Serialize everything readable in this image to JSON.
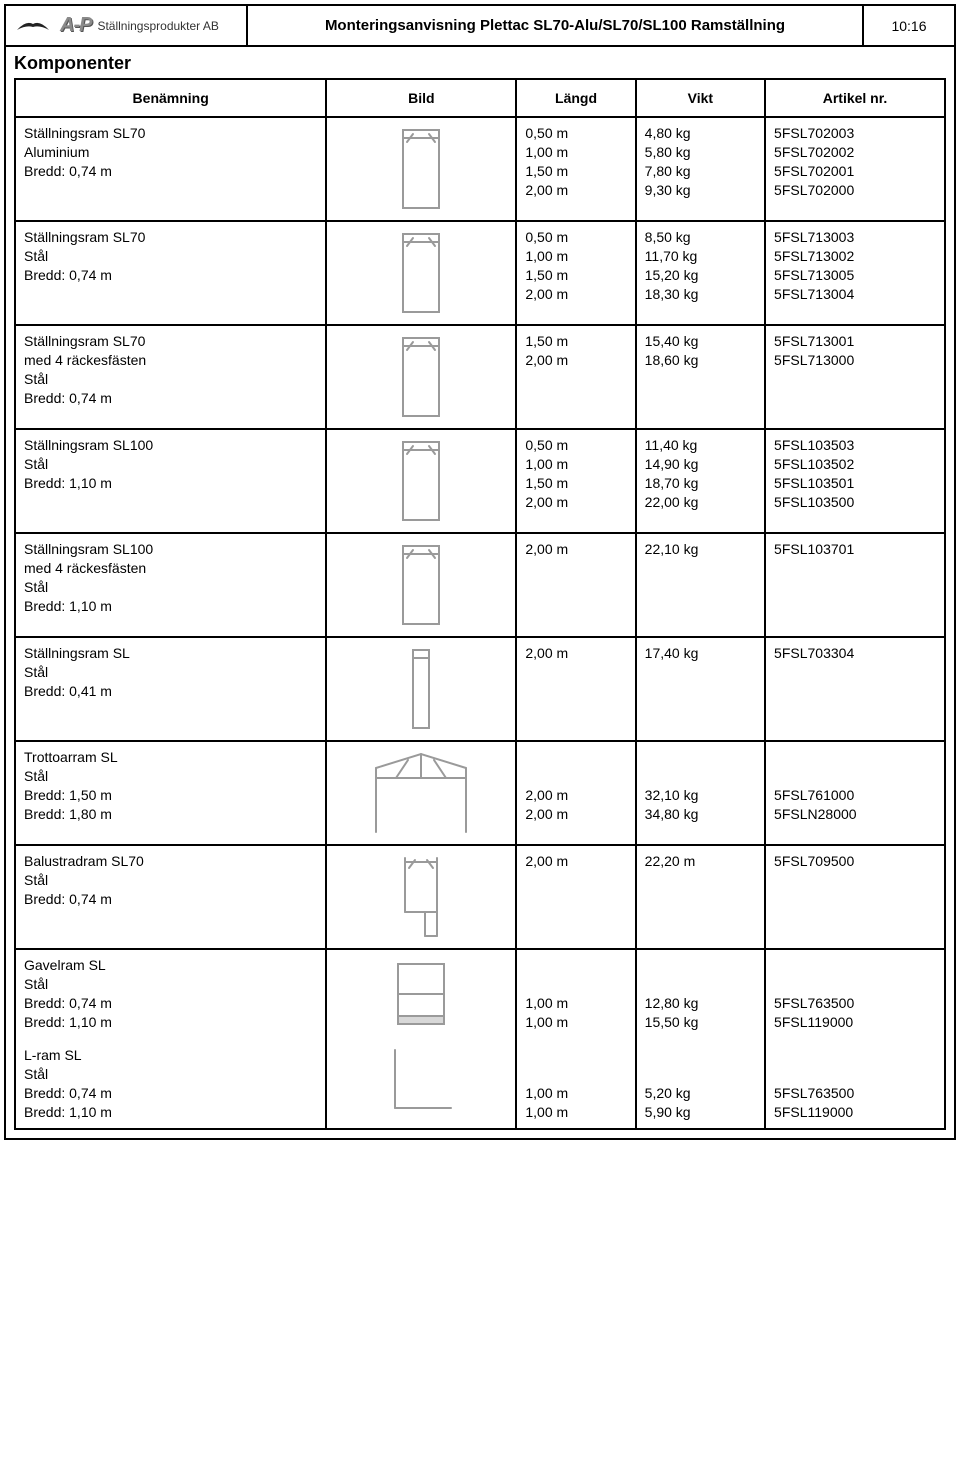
{
  "doc_title": "Monteringsanvisning Plettac SL70-Alu/SL70/SL100 Ramställning",
  "page_number": "10:16",
  "logo_company": "Ställningsprodukter AB",
  "logo_prefix": "A-P",
  "section_title": "Komponenter",
  "columns": {
    "name": "Benämning",
    "image": "Bild",
    "length": "Längd",
    "weight": "Vikt",
    "article": "Artikel nr."
  },
  "icon_stroke": "#9a9a9a",
  "rows": [
    {
      "name": "Ställningsram SL70\nAluminium\nBredd: 0,74 m",
      "image": "frame-narrow",
      "length": "0,50 m\n1,00 m\n1,50 m\n2,00 m",
      "weight": "4,80 kg\n5,80 kg\n7,80 kg\n9,30 kg",
      "article": "5FSL702003\n5FSL702002\n5FSL702001\n5FSL702000"
    },
    {
      "name": "Ställningsram SL70\nStål\nBredd: 0,74 m",
      "image": "frame-narrow",
      "length": "0,50 m\n1,00 m\n1,50 m\n2,00 m",
      "weight": "8,50 kg\n11,70 kg\n15,20 kg\n18,30 kg",
      "article": "5FSL713003\n5FSL713002\n5FSL713005\n5FSL713004"
    },
    {
      "name": "Ställningsram SL70\nmed 4 räckesfästen\nStål\nBredd: 0,74 m",
      "image": "frame-narrow",
      "length": "1,50 m\n2,00 m",
      "weight": "15,40 kg\n18,60 kg",
      "article": "5FSL713001\n5FSL713000"
    },
    {
      "name": "Ställningsram SL100\nStål\nBredd: 1,10 m",
      "image": "frame-narrow",
      "length": "0,50 m\n1,00 m\n1,50 m\n2,00 m",
      "weight": "11,40 kg\n14,90 kg\n18,70 kg\n22,00 kg",
      "article": "5FSL103503\n5FSL103502\n5FSL103501\n5FSL103500"
    },
    {
      "name": "Ställningsram SL100\nmed 4 räckesfästen\nStål\nBredd: 1,10 m",
      "image": "frame-narrow",
      "length": "2,00 m",
      "weight": "22,10 kg",
      "article": "5FSL103701"
    },
    {
      "name": "Ställningsram SL\nStål\nBredd: 0,41 m",
      "image": "frame-slim",
      "length": "2,00 m",
      "weight": "17,40 kg",
      "article": "5FSL703304"
    },
    {
      "name": "Trottoarram SL\nStål\nBredd: 1,50 m\nBredd: 1,80 m",
      "image": "trottoar",
      "length": "\n\n2,00 m\n2,00 m",
      "weight": "\n\n32,10 kg\n34,80 kg",
      "article": "\n\n5FSL761000\n5FSLN28000"
    },
    {
      "name": "Balustradram SL70\nStål\nBredd: 0,74 m",
      "image": "balustrad",
      "length": "2,00 m",
      "weight": "22,20 m",
      "article": "5FSL709500"
    },
    {
      "name": "Gavelram SL\nStål\nBredd: 0,74 m\nBredd: 1,10 m",
      "image": "gavel",
      "length": "\n\n1,00 m\n1,00 m",
      "weight": "\n\n12,80 kg\n15,50 kg",
      "article": "\n\n5FSL763500\n5FSL119000",
      "no_bottom": true
    },
    {
      "name": "L-ram SL\nStål\nBredd: 0,74 m\nBredd: 1,10 m",
      "image": "lram",
      "length": "\n\n1,00 m\n1,00 m",
      "weight": "\n\n5,20 kg\n5,90 kg",
      "article": "\n\n5FSL763500\n5FSL119000",
      "no_top": true
    }
  ]
}
